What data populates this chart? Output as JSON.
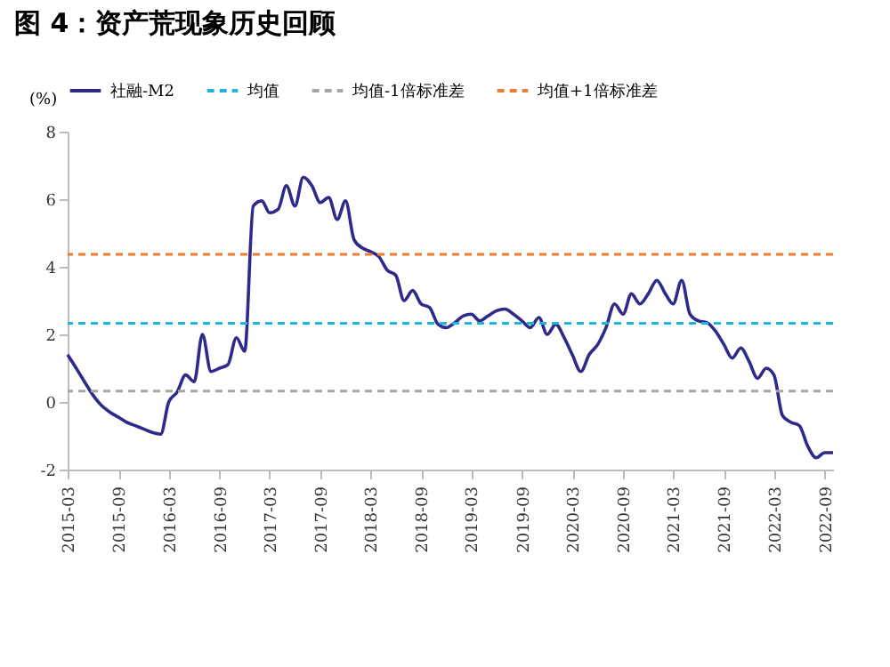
{
  "chart_data": {
    "type": "line",
    "title": "图 4：资产荒现象历史回顾",
    "ylabel": "(%)",
    "x": [
      "2015-03",
      "2015-04",
      "2015-05",
      "2015-06",
      "2015-07",
      "2015-08",
      "2015-09",
      "2015-10",
      "2015-11",
      "2015-12",
      "2016-01",
      "2016-02",
      "2016-03",
      "2016-04",
      "2016-05",
      "2016-06",
      "2016-07",
      "2016-08",
      "2016-09",
      "2016-10",
      "2016-11",
      "2016-12",
      "2017-01",
      "2017-02",
      "2017-03",
      "2017-04",
      "2017-05",
      "2017-06",
      "2017-07",
      "2017-08",
      "2017-09",
      "2017-10",
      "2017-11",
      "2017-12",
      "2018-01",
      "2018-02",
      "2018-03",
      "2018-04",
      "2018-05",
      "2018-06",
      "2018-07",
      "2018-08",
      "2018-09",
      "2018-10",
      "2018-11",
      "2018-12",
      "2019-01",
      "2019-02",
      "2019-03",
      "2019-04",
      "2019-05",
      "2019-06",
      "2019-07",
      "2019-08",
      "2019-09",
      "2019-10",
      "2019-11",
      "2019-12",
      "2020-01",
      "2020-02",
      "2020-03",
      "2020-04",
      "2020-05",
      "2020-06",
      "2020-07",
      "2020-08",
      "2020-09",
      "2020-10",
      "2020-11",
      "2020-12",
      "2021-01",
      "2021-02",
      "2021-03",
      "2021-04",
      "2021-05",
      "2021-06",
      "2021-07",
      "2021-08",
      "2021-09",
      "2021-10",
      "2021-11",
      "2021-12",
      "2022-01",
      "2022-02",
      "2022-03",
      "2022-04",
      "2022-05",
      "2022-06",
      "2022-07",
      "2022-08",
      "2022-09",
      "2022-10"
    ],
    "series": [
      {
        "name": "社融-M2",
        "color": "#2e2a8a",
        "values": [
          1.4,
          1.0,
          0.6,
          0.2,
          -0.1,
          -0.3,
          -0.45,
          -0.6,
          -0.7,
          -0.8,
          -0.9,
          -0.95,
          0.0,
          0.3,
          0.8,
          0.6,
          2.0,
          0.9,
          1.0,
          1.1,
          1.9,
          1.5,
          5.8,
          5.95,
          5.6,
          5.7,
          6.4,
          5.8,
          6.65,
          6.4,
          5.9,
          6.05,
          5.4,
          5.95,
          4.8,
          4.55,
          4.45,
          4.3,
          3.9,
          3.75,
          3.0,
          3.3,
          2.9,
          2.8,
          2.3,
          2.2,
          2.35,
          2.55,
          2.6,
          2.4,
          2.55,
          2.7,
          2.75,
          2.6,
          2.4,
          2.2,
          2.5,
          2.0,
          2.3,
          1.9,
          1.4,
          0.9,
          1.4,
          1.7,
          2.2,
          2.9,
          2.6,
          3.2,
          2.9,
          3.2,
          3.6,
          3.2,
          2.9,
          3.6,
          2.6,
          2.4,
          2.35,
          2.1,
          1.7,
          1.3,
          1.6,
          1.2,
          0.7,
          1.0,
          0.8,
          -0.4,
          -0.6,
          -0.7,
          -1.3,
          -1.65,
          -1.5,
          -1.5
        ]
      }
    ],
    "ref_lines": [
      {
        "axis": "y",
        "value": 2.33,
        "label": "均值",
        "color": "#1fb4e0",
        "line_style": "dashed"
      },
      {
        "axis": "y",
        "value": 0.32,
        "label": "均值-1倍标准差",
        "color": "#a6a6a6",
        "line_style": "dashed"
      },
      {
        "axis": "y",
        "value": 4.37,
        "label": "均值+1倍标准差",
        "color": "#ed7d31",
        "line_style": "dashed"
      }
    ],
    "xlim": [
      "2015-03",
      "2022-10"
    ],
    "xticks": [
      "2015-03",
      "2015-09",
      "2016-03",
      "2016-09",
      "2017-03",
      "2017-09",
      "2018-03",
      "2018-09",
      "2019-03",
      "2019-09",
      "2020-03",
      "2020-09",
      "2021-03",
      "2021-09",
      "2022-03",
      "2022-09"
    ],
    "ylim": [
      -2,
      8
    ],
    "yticks": [
      -2,
      0,
      2,
      4,
      6,
      8
    ],
    "grid": false,
    "legend": "top",
    "line_style": "solid",
    "marker": "none"
  }
}
